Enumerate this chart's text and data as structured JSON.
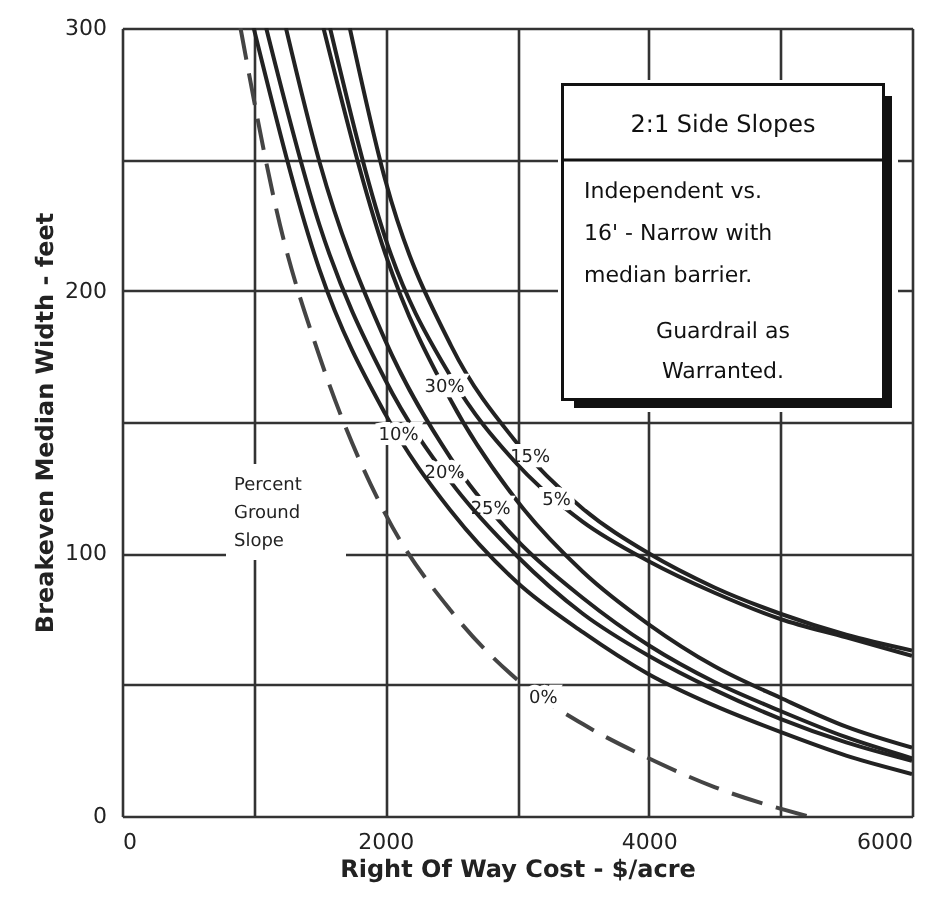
{
  "chart_data": {
    "type": "line",
    "xlabel": "Right Of Way Cost - $/acre",
    "ylabel": "Breakeven Median Width - feet",
    "xlim": [
      0,
      6000
    ],
    "ylim": [
      0,
      300
    ],
    "xticks": [
      0,
      {
        "value": 1000,
        "label": null
      },
      2000,
      {
        "value": 3000,
        "label": null
      },
      4000,
      {
        "value": 5000,
        "label": null
      },
      6000
    ],
    "yticks": [
      0,
      {
        "value": 50,
        "label": null
      },
      100,
      {
        "value": 150,
        "label": null
      },
      200,
      {
        "value": 250,
        "label": null
      },
      300
    ],
    "grid": true,
    "series": [
      {
        "name": "15%",
        "color": "#222222",
        "x": [
          1730,
          2000,
          2500,
          3000,
          3500,
          4000,
          4500,
          5000,
          5500,
          6000
        ],
        "values": [
          300,
          242,
          179,
          142,
          117,
          100,
          87,
          77,
          69,
          63
        ]
      },
      {
        "name": "5%",
        "color": "#222222",
        "x": [
          1580,
          2000,
          2500,
          3000,
          3500,
          4000,
          4500,
          5000,
          5500,
          6000
        ],
        "values": [
          300,
          220,
          167,
          134,
          112,
          97,
          85,
          75,
          68,
          61
        ]
      },
      {
        "name": "30%",
        "color": "#222222",
        "x": [
          1530,
          2000,
          2500,
          3000,
          3500,
          4000,
          4500,
          5000,
          5500,
          6000
        ],
        "values": [
          300,
          214,
          158,
          120,
          93,
          73,
          57,
          45,
          34,
          26
        ]
      },
      {
        "name": "25%",
        "color": "#222222",
        "x": [
          1245,
          1500,
          2000,
          2500,
          3000,
          3500,
          4000,
          4500,
          5000,
          5500,
          6000
        ],
        "values": [
          300,
          249,
          181,
          136,
          105,
          83,
          65,
          51,
          40,
          30,
          22
        ]
      },
      {
        "name": "20%",
        "color": "#222222",
        "x": [
          1095,
          1500,
          2000,
          2500,
          3000,
          3500,
          4000,
          4500,
          5000,
          5500,
          6000
        ],
        "values": [
          300,
          225,
          166,
          127,
          99,
          77,
          61,
          48,
          37,
          28,
          21
        ]
      },
      {
        "name": "10%",
        "color": "#222222",
        "x": [
          1000,
          1500,
          2000,
          2500,
          3000,
          3500,
          4000,
          4500,
          5000,
          5500,
          6000
        ],
        "values": [
          300,
          208,
          153,
          116,
          89,
          70,
          54,
          42,
          32,
          23,
          16
        ]
      },
      {
        "name": "0%",
        "color": "#444444",
        "line_style": "dashed",
        "x": [
          900,
          1200,
          1500,
          2000,
          2500,
          3000,
          3500,
          4000,
          4500,
          5200
        ],
        "values": [
          300,
          225,
          175,
          115,
          78,
          52,
          35,
          22,
          11,
          0
        ]
      }
    ],
    "annotations": [
      "2:1 Side Slopes",
      "Independent vs.",
      "16' - Narrow with",
      "median barrier.",
      "Guardrail as",
      "Warranted.",
      "Percent",
      "Ground",
      "Slope"
    ]
  }
}
